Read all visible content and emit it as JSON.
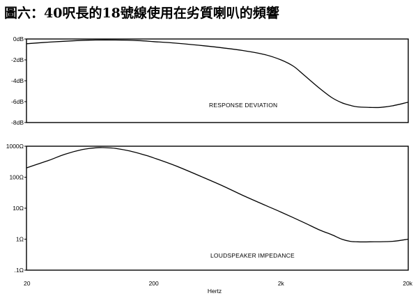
{
  "title": "圖六：40呎長的18號線使用在劣質喇叭的頻響",
  "chart_data": [
    {
      "type": "line",
      "x_scale": "log",
      "xlim": [
        20,
        20000
      ],
      "xticks": [
        "20",
        "200",
        "2k",
        "20k"
      ],
      "xlabel": "Hertz",
      "ylim": [
        -8,
        0
      ],
      "yticks": [
        "0dB",
        "-2dB",
        "-4dB",
        "-6dB",
        "-8dB"
      ],
      "annotation": "RESPONSE DEVIATION",
      "series": [
        {
          "x": [
            20,
            30,
            50,
            70,
            100,
            150,
            200,
            300,
            500,
            700,
            1000,
            1500,
            2000,
            2500,
            3000,
            4000,
            5000,
            6000,
            7000,
            8000,
            10000,
            12000,
            15000,
            20000
          ],
          "values": [
            -0.45,
            -0.3,
            -0.15,
            -0.1,
            -0.1,
            -0.15,
            -0.25,
            -0.4,
            -0.65,
            -0.85,
            -1.1,
            -1.5,
            -2.0,
            -2.6,
            -3.4,
            -4.7,
            -5.6,
            -6.1,
            -6.35,
            -6.5,
            -6.55,
            -6.55,
            -6.4,
            -6.05
          ]
        }
      ]
    },
    {
      "type": "line",
      "x_scale": "log",
      "y_scale": "log",
      "xlim": [
        20,
        20000
      ],
      "xticks": [
        "20",
        "200",
        "2k",
        "20k"
      ],
      "xlabel": "Hertz",
      "ylim": [
        0.1,
        1000
      ],
      "yticks": [
        "1000Ω",
        "100Ω",
        "10Ω",
        "1Ω",
        ".1Ω"
      ],
      "annotation": "LOUDSPEAKER IMPEDANCE",
      "series": [
        {
          "x": [
            20,
            30,
            40,
            55,
            70,
            80,
            100,
            130,
            170,
            200,
            300,
            500,
            700,
            1000,
            1500,
            2000,
            3000,
            4000,
            5000,
            6000,
            7000,
            8000,
            10000,
            15000,
            20000
          ],
          "values": [
            200,
            350,
            550,
            780,
            890,
            900,
            850,
            700,
            520,
            420,
            230,
            95,
            52,
            26,
            12.5,
            7.5,
            3.5,
            2.0,
            1.4,
            1.0,
            0.85,
            0.82,
            0.82,
            0.85,
            1.0
          ]
        }
      ]
    }
  ]
}
